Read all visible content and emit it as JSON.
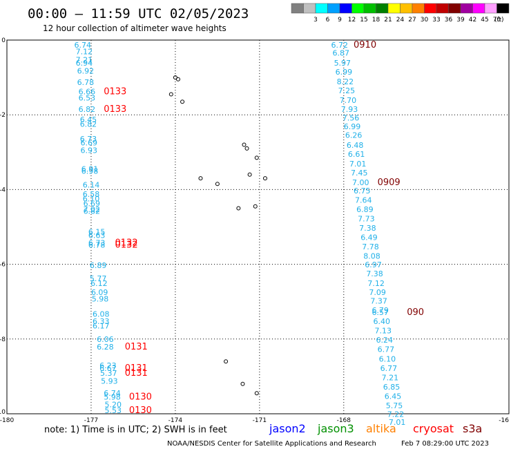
{
  "header": {
    "title": "00:00 — 11:59 UTC 02/05/2023",
    "subtitle": "12 hour collection of altimeter wave heights"
  },
  "legend": {
    "unit": "(ft)",
    "swatches": [
      {
        "label": "",
        "color": "#808080"
      },
      {
        "label": "3",
        "color": "#c0c0c0"
      },
      {
        "label": "6",
        "color": "#00ffff"
      },
      {
        "label": "9",
        "color": "#00a0ff"
      },
      {
        "label": "12",
        "color": "#0000ff"
      },
      {
        "label": "15",
        "color": "#00ff00"
      },
      {
        "label": "18",
        "color": "#00c000"
      },
      {
        "label": "21",
        "color": "#008000"
      },
      {
        "label": "24",
        "color": "#ffff00"
      },
      {
        "label": "27",
        "color": "#ffc000"
      },
      {
        "label": "30",
        "color": "#ff8000"
      },
      {
        "label": "33",
        "color": "#ff0000"
      },
      {
        "label": "36",
        "color": "#c00000"
      },
      {
        "label": "39",
        "color": "#800000"
      },
      {
        "label": "42",
        "color": "#a000a0"
      },
      {
        "label": "45",
        "color": "#ff00ff"
      },
      {
        "label": "70",
        "color": "#ffa0ff"
      },
      {
        "label": "",
        "color": "#000000"
      }
    ]
  },
  "axes": {
    "lat_labels": [
      "0",
      "-2",
      "-4",
      "-6",
      "-8",
      "-10"
    ],
    "lon_labels": [
      "-180",
      "-177",
      "-174",
      "-171",
      "-168",
      "-16"
    ]
  },
  "footer": {
    "note": "note: 1) Time is in UTC; 2) SWH is in feet",
    "satellites": [
      {
        "name": "jason2",
        "color": "#0000ff"
      },
      {
        "name": "jason3",
        "color": "#009000"
      },
      {
        "name": "altika",
        "color": "#ff8000"
      },
      {
        "name": "cryosat",
        "color": "#ff0000"
      },
      {
        "name": "s3a",
        "color": "#800000"
      }
    ],
    "credit": "NOAA/NESDIS Center for Satellite Applications and Research",
    "timestamp": "Feb  7 08:29:00 UTC 2023"
  },
  "colors": {
    "track": "#20b0e8",
    "cryosat": "#ff0000",
    "s3a": "#800000"
  },
  "tracks": {
    "left_values": [
      {
        "lon": -177.6,
        "lat": -0.2,
        "v": "6.74"
      },
      {
        "lon": -177.55,
        "lat": -0.38,
        "v": "7.12"
      },
      {
        "lon": -177.55,
        "lat": -0.6,
        "v": "7.21"
      },
      {
        "lon": -177.55,
        "lat": -0.68,
        "v": "6.94"
      },
      {
        "lon": -177.5,
        "lat": -0.9,
        "v": "6.92"
      },
      {
        "lon": -177.5,
        "lat": -1.2,
        "v": "6.78"
      },
      {
        "lon": -177.45,
        "lat": -1.45,
        "v": "6.66"
      },
      {
        "lon": -177.45,
        "lat": -1.62,
        "v": "6.53"
      },
      {
        "lon": -177.45,
        "lat": -1.92,
        "v": "6.82"
      },
      {
        "lon": -177.4,
        "lat": -2.2,
        "v": "6.45"
      },
      {
        "lon": -177.4,
        "lat": -2.32,
        "v": "6.82"
      },
      {
        "lon": -177.4,
        "lat": -2.72,
        "v": "6.73"
      },
      {
        "lon": -177.38,
        "lat": -2.82,
        "v": "6.69"
      },
      {
        "lon": -177.38,
        "lat": -3.02,
        "v": "6.93"
      },
      {
        "lon": -177.35,
        "lat": -3.52,
        "v": "6.91"
      },
      {
        "lon": -177.35,
        "lat": -3.58,
        "v": "6.98"
      },
      {
        "lon": -177.3,
        "lat": -3.95,
        "v": "6.14"
      },
      {
        "lon": -177.3,
        "lat": -4.2,
        "v": "6.58"
      },
      {
        "lon": -177.3,
        "lat": -4.32,
        "v": "6.10"
      },
      {
        "lon": -177.28,
        "lat": -4.45,
        "v": "6.69"
      },
      {
        "lon": -177.28,
        "lat": -4.6,
        "v": "7.02"
      },
      {
        "lon": -177.28,
        "lat": -4.65,
        "v": "6.82"
      },
      {
        "lon": -177.1,
        "lat": -5.2,
        "v": "6.15"
      },
      {
        "lon": -177.1,
        "lat": -5.3,
        "v": "6.63"
      },
      {
        "lon": -177.1,
        "lat": -5.5,
        "v": "6.73"
      },
      {
        "lon": -177.1,
        "lat": -5.55,
        "v": "6.78"
      },
      {
        "lon": -177.05,
        "lat": -6.1,
        "v": "6.89"
      },
      {
        "lon": -177.05,
        "lat": -6.45,
        "v": "5.77"
      },
      {
        "lon": -177.02,
        "lat": -6.58,
        "v": "6.12"
      },
      {
        "lon": -177.0,
        "lat": -6.82,
        "v": "6.09"
      },
      {
        "lon": -176.98,
        "lat": -7.0,
        "v": "5.98"
      },
      {
        "lon": -176.95,
        "lat": -7.4,
        "v": "6.08"
      },
      {
        "lon": -176.95,
        "lat": -7.6,
        "v": "6.33"
      },
      {
        "lon": -176.95,
        "lat": -7.72,
        "v": "6.17"
      },
      {
        "lon": -176.8,
        "lat": -8.08,
        "v": "6.06"
      },
      {
        "lon": -176.8,
        "lat": -8.28,
        "v": "6.28"
      },
      {
        "lon": -176.7,
        "lat": -8.78,
        "v": "6.23"
      },
      {
        "lon": -176.7,
        "lat": -8.85,
        "v": "6.67"
      },
      {
        "lon": -176.68,
        "lat": -8.98,
        "v": "5.37"
      },
      {
        "lon": -176.65,
        "lat": -9.2,
        "v": "5.93"
      },
      {
        "lon": -176.55,
        "lat": -9.52,
        "v": "6.74"
      },
      {
        "lon": -176.55,
        "lat": -9.62,
        "v": "5.98"
      },
      {
        "lon": -176.52,
        "lat": -9.82,
        "v": "5.20"
      },
      {
        "lon": -176.52,
        "lat": -9.98,
        "v": "5.53"
      }
    ],
    "left_times": [
      {
        "lon": -176.55,
        "lat": -1.45,
        "v": "0133"
      },
      {
        "lon": -176.55,
        "lat": -1.92,
        "v": "0133"
      },
      {
        "lon": -176.15,
        "lat": -5.5,
        "v": "0132"
      },
      {
        "lon": -176.15,
        "lat": -5.55,
        "v": "0132"
      },
      {
        "lon": -175.8,
        "lat": -8.28,
        "v": "0131"
      },
      {
        "lon": -175.8,
        "lat": -8.85,
        "v": "0131"
      },
      {
        "lon": -175.8,
        "lat": -8.98,
        "v": "0131"
      },
      {
        "lon": -175.65,
        "lat": -9.62,
        "v": "0130"
      },
      {
        "lon": -175.65,
        "lat": -9.98,
        "v": "0130"
      }
    ],
    "right_values": [
      {
        "lon": -168.45,
        "lat": -0.2,
        "v": "6.72"
      },
      {
        "lon": -168.4,
        "lat": -0.42,
        "v": "6.87"
      },
      {
        "lon": -168.35,
        "lat": -0.68,
        "v": "5.97"
      },
      {
        "lon": -168.3,
        "lat": -0.92,
        "v": "6.99"
      },
      {
        "lon": -168.25,
        "lat": -1.18,
        "v": "8.22"
      },
      {
        "lon": -168.2,
        "lat": -1.42,
        "v": "7.25"
      },
      {
        "lon": -168.15,
        "lat": -1.68,
        "v": "7.70"
      },
      {
        "lon": -168.1,
        "lat": -1.92,
        "v": "7.93"
      },
      {
        "lon": -168.05,
        "lat": -2.15,
        "v": "7.56"
      },
      {
        "lon": -168.0,
        "lat": -2.38,
        "v": "6.99"
      },
      {
        "lon": -167.95,
        "lat": -2.62,
        "v": "6.26"
      },
      {
        "lon": -167.9,
        "lat": -2.88,
        "v": "6.48"
      },
      {
        "lon": -167.85,
        "lat": -3.12,
        "v": "6.61"
      },
      {
        "lon": -167.8,
        "lat": -3.38,
        "v": "7.01"
      },
      {
        "lon": -167.75,
        "lat": -3.62,
        "v": "7.45"
      },
      {
        "lon": -167.7,
        "lat": -3.88,
        "v": "7.00"
      },
      {
        "lon": -167.65,
        "lat": -4.1,
        "v": "6.75"
      },
      {
        "lon": -167.6,
        "lat": -4.35,
        "v": "7.64"
      },
      {
        "lon": -167.55,
        "lat": -4.6,
        "v": "6.89"
      },
      {
        "lon": -167.5,
        "lat": -4.85,
        "v": "7.73"
      },
      {
        "lon": -167.45,
        "lat": -5.1,
        "v": "7.38"
      },
      {
        "lon": -167.4,
        "lat": -5.35,
        "v": "6.49"
      },
      {
        "lon": -167.35,
        "lat": -5.6,
        "v": "7.78"
      },
      {
        "lon": -167.3,
        "lat": -5.85,
        "v": "8.08"
      },
      {
        "lon": -167.25,
        "lat": -6.08,
        "v": "6.97"
      },
      {
        "lon": -167.2,
        "lat": -6.32,
        "v": "7.38"
      },
      {
        "lon": -167.15,
        "lat": -6.58,
        "v": "7.12"
      },
      {
        "lon": -167.1,
        "lat": -6.82,
        "v": "7.09"
      },
      {
        "lon": -167.05,
        "lat": -7.05,
        "v": "7.37"
      },
      {
        "lon": -167.0,
        "lat": -7.3,
        "v": "6.79"
      },
      {
        "lon": -167.0,
        "lat": -7.36,
        "v": "6.57"
      },
      {
        "lon": -166.95,
        "lat": -7.6,
        "v": "6.40"
      },
      {
        "lon": -166.9,
        "lat": -7.85,
        "v": "7.13"
      },
      {
        "lon": -166.85,
        "lat": -8.1,
        "v": "6.24"
      },
      {
        "lon": -166.8,
        "lat": -8.35,
        "v": "6.77"
      },
      {
        "lon": -166.75,
        "lat": -8.6,
        "v": "6.10"
      },
      {
        "lon": -166.7,
        "lat": -8.85,
        "v": "6.77"
      },
      {
        "lon": -166.65,
        "lat": -9.1,
        "v": "7.21"
      },
      {
        "lon": -166.6,
        "lat": -9.35,
        "v": "6.85"
      },
      {
        "lon": -166.55,
        "lat": -9.6,
        "v": "6.45"
      },
      {
        "lon": -166.5,
        "lat": -9.85,
        "v": "5.75"
      },
      {
        "lon": -166.45,
        "lat": -10.08,
        "v": "7.22"
      },
      {
        "lon": -166.4,
        "lat": -10.3,
        "v": "7.01"
      }
    ],
    "right_times": [
      {
        "lon": -167.65,
        "lat": -0.2,
        "v": "0910"
      },
      {
        "lon": -166.8,
        "lat": -3.88,
        "v": "0909"
      },
      {
        "lon": -165.75,
        "lat": -7.36,
        "v": "090"
      }
    ]
  },
  "islands": [
    {
      "lon": -174.0,
      "lat": -1.0
    },
    {
      "lon": -173.9,
      "lat": -1.05
    },
    {
      "lon": -174.15,
      "lat": -1.45
    },
    {
      "lon": -173.75,
      "lat": -1.65
    },
    {
      "lon": -171.55,
      "lat": -2.8
    },
    {
      "lon": -171.45,
      "lat": -2.9
    },
    {
      "lon": -171.1,
      "lat": -3.15
    },
    {
      "lon": -171.35,
      "lat": -3.6
    },
    {
      "lon": -170.8,
      "lat": -3.7
    },
    {
      "lon": -173.1,
      "lat": -3.7
    },
    {
      "lon": -172.5,
      "lat": -3.85
    },
    {
      "lon": -171.75,
      "lat": -4.5
    },
    {
      "lon": -171.15,
      "lat": -4.45
    },
    {
      "lon": -172.2,
      "lat": -8.6
    },
    {
      "lon": -171.6,
      "lat": -9.2
    },
    {
      "lon": -171.1,
      "lat": -9.45
    }
  ]
}
